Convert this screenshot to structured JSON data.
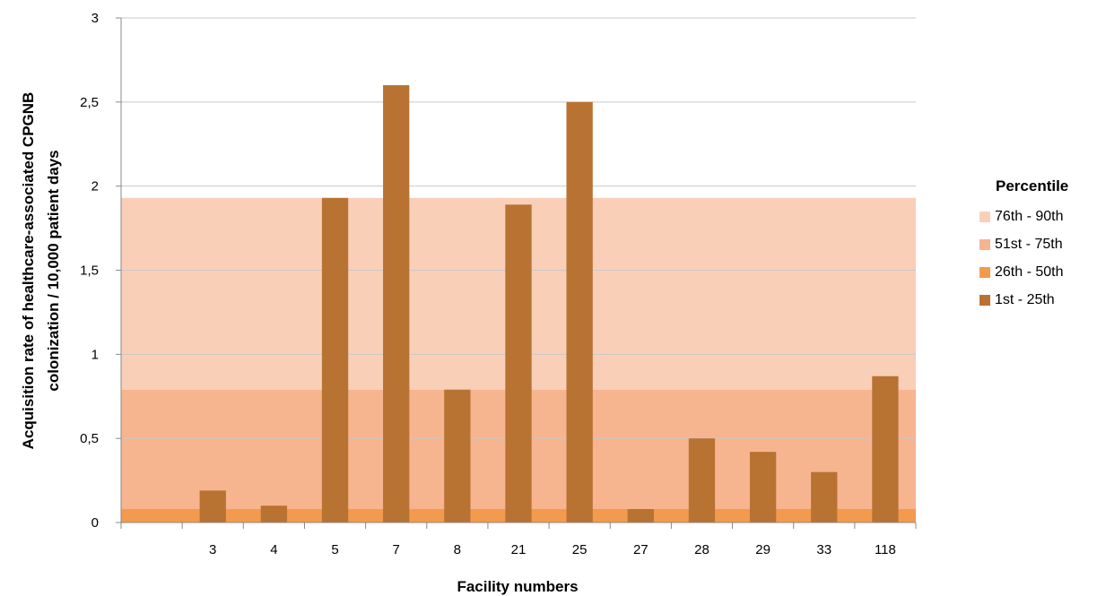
{
  "chart_data": {
    "type": "bar",
    "xlabel": "Facility numbers",
    "ylabel": "Acquisition rate of healthcare-associated CPGNB colonization / 10,000 patient days",
    "ylabel_lines": [
      "Acquisition rate of healthcare-associated CPGNB",
      "colonization / 10,000 patient days"
    ],
    "categories": [
      "3",
      "4",
      "5",
      "7",
      "8",
      "21",
      "25",
      "27",
      "28",
      "29",
      "33",
      "118"
    ],
    "values": [
      0.19,
      0.1,
      1.93,
      2.6,
      0.79,
      1.89,
      2.5,
      0.08,
      0.5,
      0.42,
      0.3,
      0.87
    ],
    "ylim": [
      0,
      3
    ],
    "yticks": [
      0,
      0.5,
      1,
      1.5,
      2,
      2.5,
      3
    ],
    "ytick_labels": [
      "0",
      "0,5",
      "1",
      "1,5",
      "2",
      "2,5",
      "3"
    ],
    "grid": true,
    "bar_color": "#B87333",
    "percentile_bands": [
      {
        "name": "76th - 90th",
        "from": 0.79,
        "to": 1.93,
        "color": "#FACFB8"
      },
      {
        "name": "51st - 75th",
        "from": 0.08,
        "to": 0.79,
        "color": "#F6B48F"
      },
      {
        "name": "26th - 50th",
        "from": 0,
        "to": 0.08,
        "color": "#F39A4D"
      },
      {
        "name": "1st - 25th",
        "from": 0,
        "to": 0,
        "color": "#B87333"
      }
    ],
    "legend": {
      "title": "Percentile",
      "position": "right",
      "items": [
        {
          "label": "76th - 90th",
          "color": "#FACFB8"
        },
        {
          "label": "51st - 75th",
          "color": "#F6B48F"
        },
        {
          "label": "26th - 50th",
          "color": "#F39A4D"
        },
        {
          "label": "1st - 25th",
          "color": "#B87333"
        }
      ]
    }
  }
}
